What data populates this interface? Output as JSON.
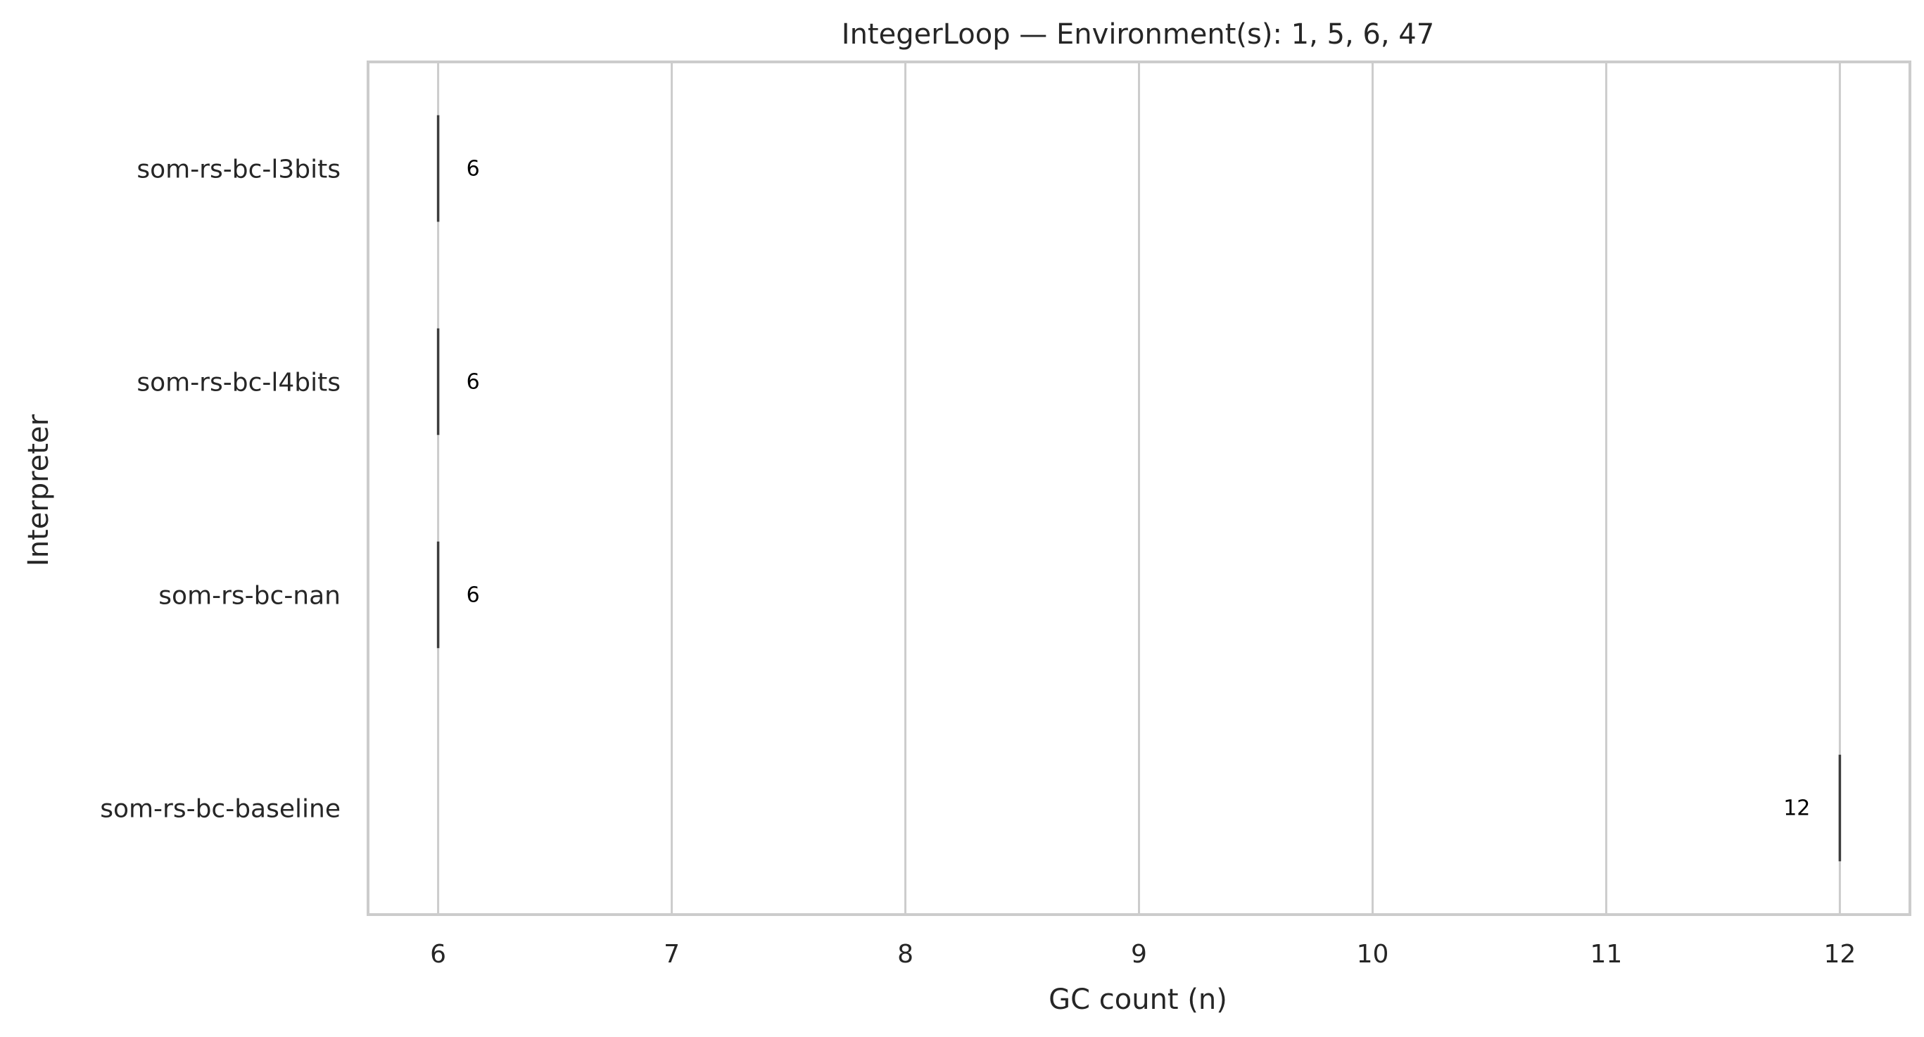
{
  "chart_data": {
    "type": "box",
    "orientation": "horizontal",
    "title": "IntegerLoop — Environment(s): 1, 5, 6, 47",
    "xlabel": "GC count (n)",
    "ylabel": "Interpreter",
    "xlim": [
      5.7,
      12.3
    ],
    "xticks": [
      6,
      7,
      8,
      9,
      10,
      11,
      12
    ],
    "grid": "x",
    "categories": [
      "som-rs-bc-l3bits",
      "som-rs-bc-l4bits",
      "som-rs-bc-nan",
      "som-rs-bc-baseline"
    ],
    "values": [
      6,
      6,
      6,
      12
    ],
    "data_labels": [
      "6",
      "6",
      "6",
      "12"
    ],
    "colors": {
      "mark": "#3d3d3d",
      "grid": "#cccccc",
      "text": "#262626"
    }
  }
}
